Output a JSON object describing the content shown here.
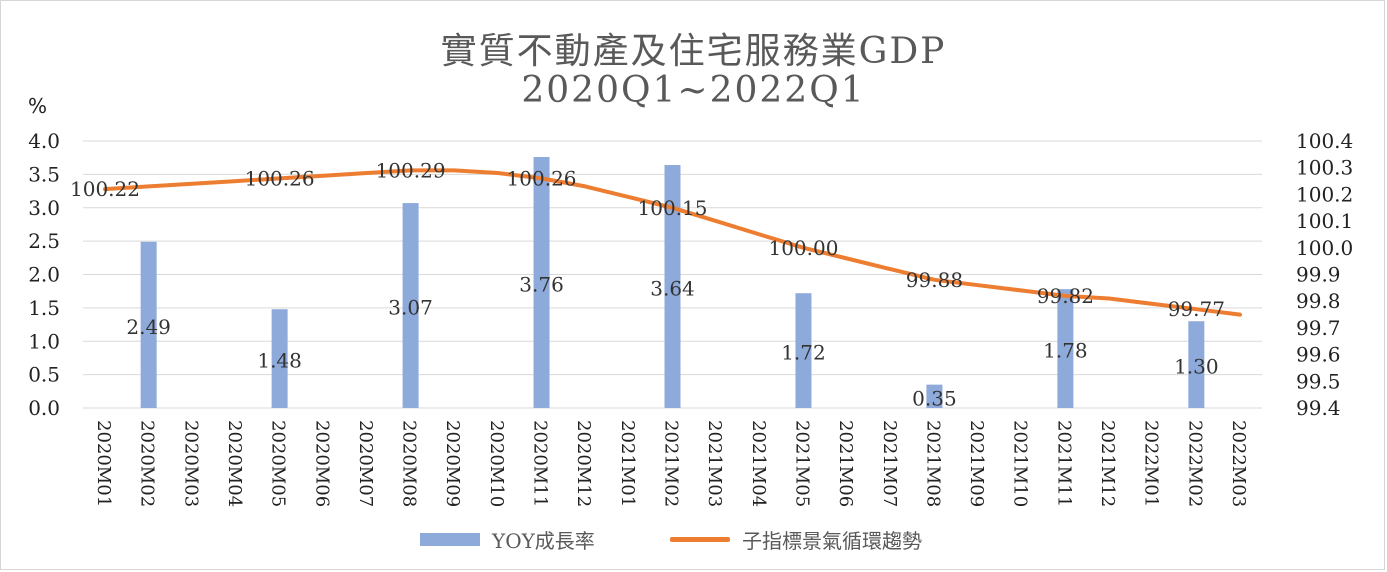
{
  "title": {
    "line1": "實質不動產及住宅服務業GDP",
    "line2": "2020Q1~2022Q1"
  },
  "unit_label": "%",
  "colors": {
    "bar": "#8eaadb",
    "line": "#ed7d31",
    "grid": "#d9d9d9",
    "text": "#595959"
  },
  "chart_data": {
    "type": "bar+line",
    "categories": [
      "2020M01",
      "2020M02",
      "2020M03",
      "2020M04",
      "2020M05",
      "2020M06",
      "2020M07",
      "2020M08",
      "2020M09",
      "2020M10",
      "2020M11",
      "2020M12",
      "2021M01",
      "2021M02",
      "2021M03",
      "2021M04",
      "2021M05",
      "2021M06",
      "2021M07",
      "2021M08",
      "2021M09",
      "2021M10",
      "2021M11",
      "2021M12",
      "2022M01",
      "2022M02",
      "2022M03"
    ],
    "bar_series": {
      "name": "YOY成長率",
      "axis": "left",
      "values": [
        null,
        2.49,
        null,
        null,
        1.48,
        null,
        null,
        3.07,
        null,
        null,
        3.76,
        null,
        null,
        3.64,
        null,
        null,
        1.72,
        null,
        null,
        0.35,
        null,
        null,
        1.78,
        null,
        null,
        1.3,
        null
      ],
      "labels": [
        null,
        "2.49",
        null,
        null,
        "1.48",
        null,
        null,
        "3.07",
        null,
        null,
        "3.76",
        null,
        null,
        "3.64",
        null,
        null,
        "1.72",
        null,
        null,
        "0.35",
        null,
        null,
        "1.78",
        null,
        null,
        "1.30",
        null
      ]
    },
    "line_series": {
      "name": "子指標景氣循環趨勢",
      "axis": "right",
      "values": [
        100.22,
        100.23,
        100.24,
        100.25,
        100.26,
        100.27,
        100.28,
        100.29,
        100.29,
        100.28,
        100.26,
        100.23,
        100.19,
        100.15,
        100.1,
        100.05,
        100.0,
        99.96,
        99.92,
        99.88,
        99.86,
        99.84,
        99.82,
        99.81,
        99.79,
        99.77,
        99.75
      ],
      "labels": [
        "100.22",
        null,
        null,
        null,
        "100.26",
        null,
        null,
        "100.29",
        null,
        null,
        "100.26",
        null,
        null,
        "100.15",
        null,
        null,
        "100.00",
        null,
        null,
        "99.88",
        null,
        null,
        "99.82",
        null,
        null,
        "99.77",
        null
      ]
    },
    "left_axis": {
      "ylim": [
        0,
        4.0
      ],
      "ticks": [
        "0.0",
        "0.5",
        "1.0",
        "1.5",
        "2.0",
        "2.5",
        "3.0",
        "3.5",
        "4.0"
      ]
    },
    "right_axis": {
      "ylim": [
        99.4,
        100.4
      ],
      "ticks": [
        "99.4",
        "99.5",
        "99.6",
        "99.7",
        "99.8",
        "99.9",
        "100.0",
        "100.1",
        "100.2",
        "100.3",
        "100.4"
      ]
    },
    "grid": true,
    "legend_position": "bottom",
    "legend": [
      "YOY成長率",
      "子指標景氣循環趨勢"
    ]
  }
}
